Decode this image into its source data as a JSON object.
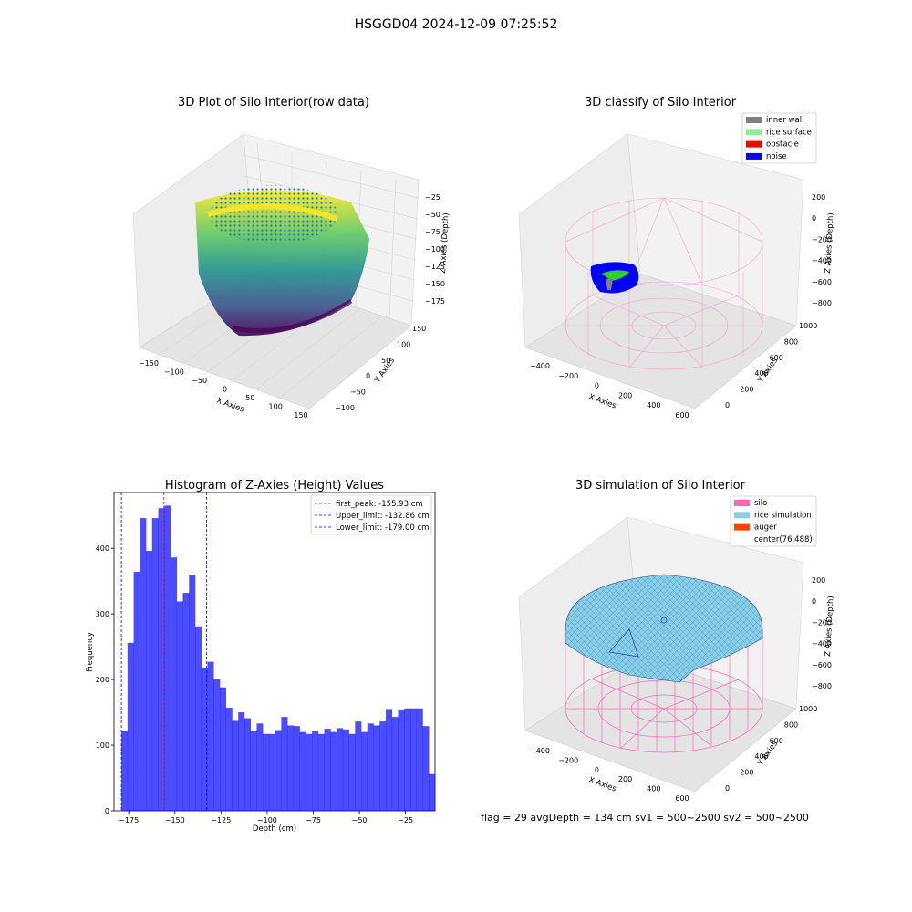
{
  "figure": {
    "suptitle": "HSGGD04 2024-12-09 07:25:52",
    "status_line": "flag = 29  avgDepth = 134 cm  sv1 = 500~2500  sv2 = 500~2500"
  },
  "panels": {
    "raw": {
      "title": "3D Plot of Silo Interior(row data)",
      "xlabel": "X Axies",
      "ylabel": "Y Axies",
      "zlabel": "Z Axies (Depth)",
      "xticks": [
        "−150",
        "−100",
        "−50",
        "0",
        "50",
        "100",
        "150"
      ],
      "yticks": [
        "−100",
        "−50",
        "0",
        "50",
        "100",
        "150"
      ],
      "zticks": [
        "−25",
        "−50",
        "−75",
        "−100",
        "−125",
        "−150",
        "−175"
      ],
      "colormap": "viridis"
    },
    "classify": {
      "title": "3D classify of Silo Interior",
      "xlabel": "X Axies",
      "ylabel": "Y Axies",
      "zlabel": "Z Axies (Depth)",
      "xticks": [
        "−400",
        "−200",
        "0",
        "200",
        "400",
        "600"
      ],
      "yticks": [
        "0",
        "200",
        "400",
        "600",
        "800",
        "1000"
      ],
      "zticks": [
        "200",
        "0",
        "−200",
        "−400",
        "−600",
        "−800"
      ],
      "legend": [
        {
          "label": "inner wall",
          "color": "#808080"
        },
        {
          "label": "rice surface",
          "color": "#90ee90"
        },
        {
          "label": "obstacle",
          "color": "#ff0000"
        },
        {
          "label": "noise",
          "color": "#0000ff"
        }
      ],
      "wire_color": "#ff69b4"
    },
    "simulation": {
      "title": "3D simulation of Silo Interior",
      "xlabel": "X Axies",
      "ylabel": "Y Axies",
      "zlabel": "Z Axies (Depth)",
      "xticks": [
        "−400",
        "−200",
        "0",
        "200",
        "400",
        "600"
      ],
      "yticks": [
        "0",
        "200",
        "400",
        "600",
        "800",
        "1000"
      ],
      "zticks": [
        "200",
        "0",
        "−200",
        "−400",
        "−600",
        "−800"
      ],
      "legend": [
        {
          "label": "silo",
          "color": "#ff69b4"
        },
        {
          "label": "rice simulation",
          "color": "#87ceeb"
        },
        {
          "label": "auger",
          "color": "#ff4500"
        },
        {
          "label": "center(76,488)",
          "color": "#ffffff"
        }
      ]
    }
  },
  "chart_data": {
    "type": "bar",
    "title": "Histogram of Z-Axies (Height) Values",
    "xlabel": "Depth (cm)",
    "ylabel": "Frequency",
    "xlim": [
      -183,
      -9
    ],
    "ylim": [
      0,
      485
    ],
    "xticks": [
      -175,
      -150,
      -125,
      -100,
      -75,
      -50,
      -25
    ],
    "xtick_labels": [
      "−175",
      "−150",
      "−125",
      "−100",
      "−75",
      "−50",
      "−25"
    ],
    "yticks": [
      0,
      100,
      200,
      300,
      400
    ],
    "bin_start": -179.0,
    "bin_width": 3.333,
    "values": [
      121,
      256,
      364,
      446,
      396,
      446,
      461,
      465,
      386,
      319,
      332,
      360,
      281,
      218,
      227,
      200,
      188,
      157,
      137,
      150,
      141,
      121,
      133,
      117,
      117,
      123,
      143,
      130,
      129,
      120,
      117,
      121,
      117,
      125,
      120,
      126,
      124,
      117,
      136,
      120,
      133,
      130,
      136,
      155,
      143,
      153,
      156,
      156,
      156,
      129,
      56
    ],
    "bar_color": "#0000ff",
    "bar_alpha": 0.7,
    "vlines": [
      {
        "label": "first_peak: -155.93 cm",
        "x": -155.93,
        "color": "#ff0000"
      },
      {
        "label": "Upper_limit: -132.86 cm",
        "x": -132.86,
        "color": "#0000ff"
      },
      {
        "label": "Lower_limit: -179.00 cm",
        "x": -179.0,
        "color": "#0000ff"
      }
    ],
    "legend_position": "upper right"
  }
}
